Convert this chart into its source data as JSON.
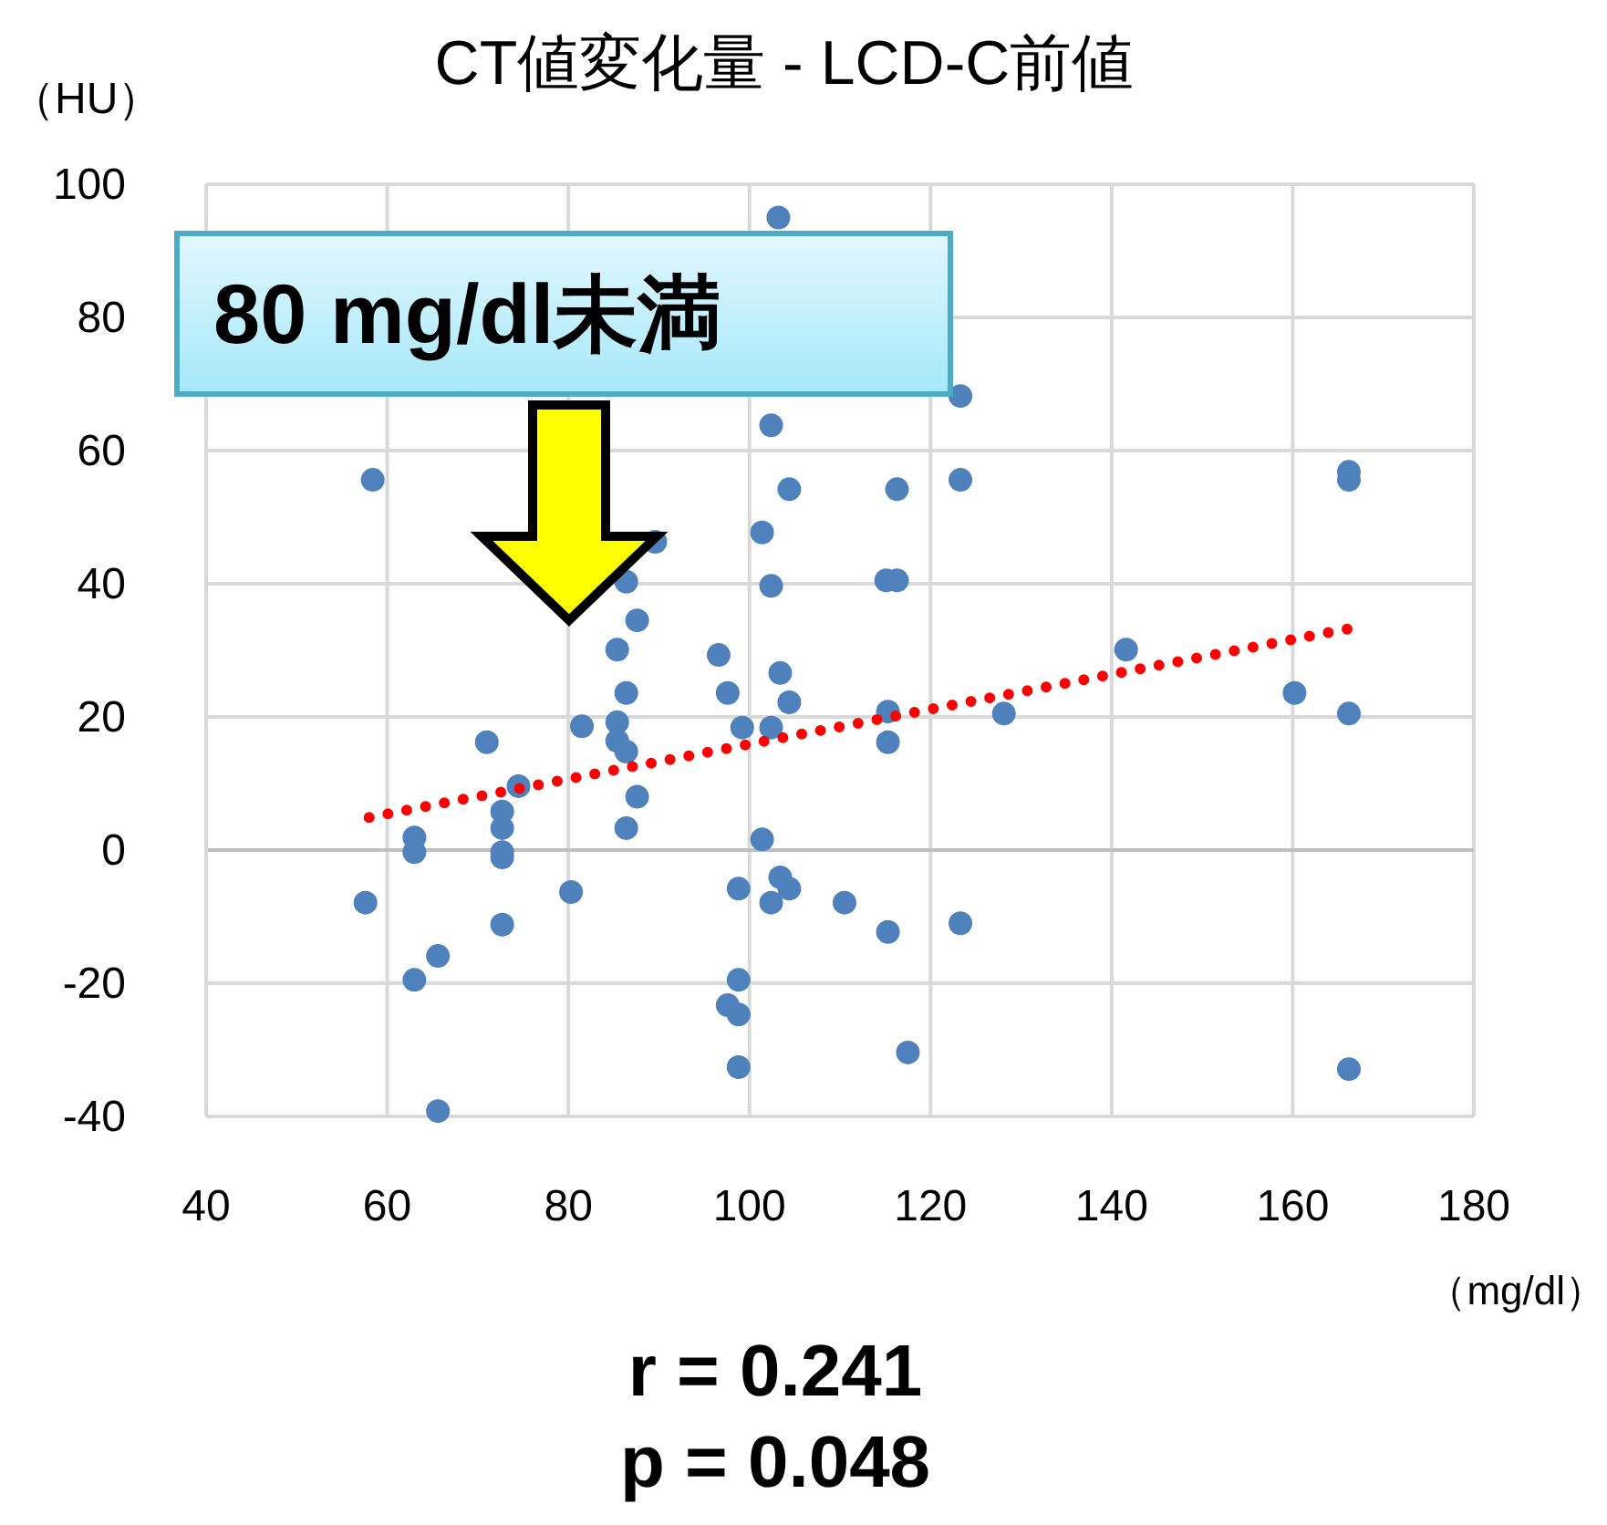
{
  "chart_data": {
    "type": "scatter",
    "title": "CT値変化量 - LCD-C前値",
    "xlabel": "（mg/dl）",
    "ylabel": "（HU）",
    "xlim": [
      40,
      180
    ],
    "xticks": [
      40,
      60,
      80,
      100,
      120,
      140,
      160,
      180
    ],
    "ylim": [
      -40,
      100
    ],
    "yticks": [
      -40,
      -20,
      0,
      20,
      40,
      60,
      80,
      100
    ],
    "grid": true,
    "series": [
      {
        "color": "#4f81bd",
        "marker": "circle",
        "x": [
          57.6,
          58.4,
          63,
          63,
          63,
          65.6,
          65.6,
          71,
          72.7,
          72.7,
          72.7,
          72.7,
          72.7,
          74.5,
          80.3,
          81.5,
          86.4,
          87.6,
          85.4,
          86.4,
          85.4,
          85.4,
          86.4,
          87.6,
          86.4,
          89.6,
          102.4,
          104.4,
          101.4,
          102.4,
          96.6,
          97.6,
          103.4,
          104.4,
          99.2,
          102.4,
          101.4,
          98.8,
          103.4,
          104.4,
          102.4,
          98.8,
          97.6,
          98.8,
          98.8,
          103.2,
          123.3,
          123.3,
          116.3,
          115.1,
          116.3,
          115.3,
          115.3,
          128.1,
          110.5,
          115.3,
          123.3,
          117.5,
          141.6,
          160.2,
          166.2,
          166.2,
          166.2,
          166.2
        ],
        "values": [
          -7.9,
          55.6,
          1.9,
          -0.3,
          -19.5,
          -15.9,
          -39.2,
          16.2,
          5.8,
          3.3,
          -0.3,
          -1.1,
          -11.2,
          9.6,
          -6.3,
          18.6,
          40.3,
          34.5,
          30.1,
          23.6,
          19.2,
          16.4,
          14.8,
          8,
          3.3,
          46.3,
          63.8,
          54.2,
          47.7,
          39.7,
          29.3,
          23.6,
          26.6,
          22.2,
          18.4,
          18.4,
          1.6,
          -5.8,
          -4.1,
          -5.8,
          -7.9,
          -19.5,
          -23.3,
          -24.7,
          -32.6,
          95,
          68.2,
          55.6,
          54.2,
          40.5,
          40.5,
          20.8,
          16.2,
          20.5,
          -7.9,
          -12.3,
          -11,
          -30.4,
          30.1,
          23.6,
          56.8,
          55.6,
          20.5,
          -32.9
        ]
      },
      {
        "type": "line",
        "line_style": "dotted",
        "marker": "none",
        "color": "#ff0000",
        "x": [
          58,
          166
        ],
        "values": [
          4.9,
          33.2
        ]
      }
    ],
    "annotations": [
      "80 mg/dl未満",
      "r = 0.241",
      "p = 0.048"
    ]
  }
}
